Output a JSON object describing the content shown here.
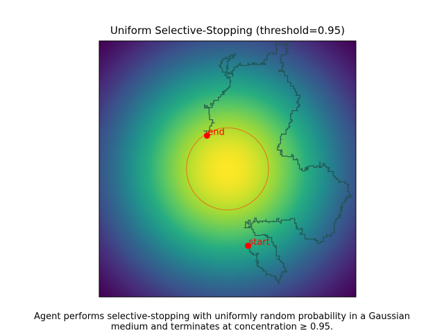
{
  "chart_data": {
    "type": "heatmap",
    "title": "Uniform Selective-Stopping (threshold=0.95)",
    "xlabel": "",
    "ylabel": "",
    "axes_visible": false,
    "colormap": "viridis",
    "field": {
      "distribution": "gaussian",
      "center": [
        0.5,
        0.5
      ],
      "sigma": 0.35
    },
    "xlim": [
      0,
      1
    ],
    "ylim": [
      0,
      1
    ],
    "threshold": 0.95,
    "threshold_circle": {
      "center": [
        0.5,
        0.5
      ],
      "radius": 0.16,
      "color": "#e8701a"
    },
    "path_color": "#1f4f4a",
    "marker_color": "#ff0000",
    "points": [
      {
        "label": "start",
        "x": 0.58,
        "y": 0.2
      },
      {
        "label": "end",
        "x": 0.42,
        "y": 0.63
      }
    ],
    "trajectory_waypoints": [
      [
        0.58,
        0.2
      ],
      [
        0.62,
        0.17
      ],
      [
        0.65,
        0.1
      ],
      [
        0.7,
        0.05
      ],
      [
        0.72,
        0.13
      ],
      [
        0.69,
        0.19
      ],
      [
        0.63,
        0.24
      ],
      [
        0.57,
        0.27
      ],
      [
        0.6,
        0.29
      ],
      [
        0.65,
        0.3
      ],
      [
        0.72,
        0.3
      ],
      [
        0.79,
        0.25
      ],
      [
        0.85,
        0.21
      ],
      [
        0.91,
        0.25
      ],
      [
        0.94,
        0.31
      ],
      [
        0.95,
        0.37
      ],
      [
        0.97,
        0.42
      ],
      [
        0.93,
        0.46
      ],
      [
        0.89,
        0.5
      ],
      [
        0.86,
        0.53
      ],
      [
        0.82,
        0.51
      ],
      [
        0.78,
        0.5
      ],
      [
        0.73,
        0.55
      ],
      [
        0.71,
        0.63
      ],
      [
        0.74,
        0.68
      ],
      [
        0.77,
        0.74
      ],
      [
        0.77,
        0.8
      ],
      [
        0.74,
        0.84
      ],
      [
        0.7,
        0.88
      ],
      [
        0.71,
        0.94
      ],
      [
        0.73,
        0.98
      ],
      [
        0.69,
        0.99
      ],
      [
        0.66,
        0.95
      ],
      [
        0.58,
        0.91
      ],
      [
        0.52,
        0.86
      ],
      [
        0.5,
        0.91
      ],
      [
        0.53,
        0.95
      ],
      [
        0.51,
        0.93
      ],
      [
        0.48,
        0.89
      ],
      [
        0.51,
        0.82
      ],
      [
        0.47,
        0.78
      ],
      [
        0.44,
        0.74
      ],
      [
        0.41,
        0.75
      ],
      [
        0.43,
        0.71
      ],
      [
        0.45,
        0.68
      ],
      [
        0.43,
        0.66
      ],
      [
        0.42,
        0.63
      ]
    ]
  },
  "caption": {
    "line1": "Agent performs selective-stopping with uniformly random probability in a Gaussian",
    "line2": "medium and terminates at concentration ≥ 0.95."
  }
}
